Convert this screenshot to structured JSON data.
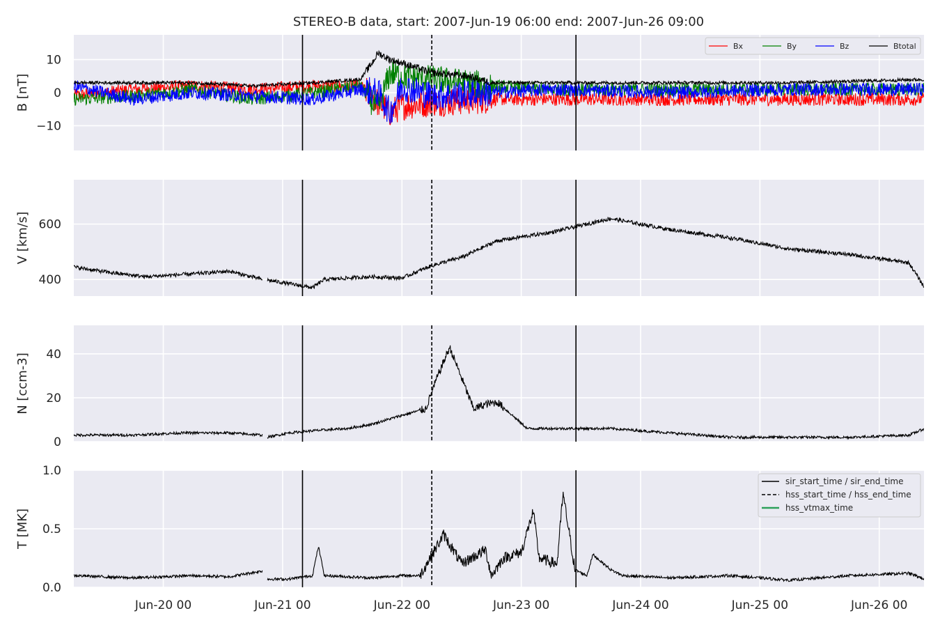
{
  "chart_data": {
    "type": "line",
    "title": "STEREO-B data, start: 2007-Jun-19 06:00  end: 2007-Jun-26 09:00",
    "x_range": [
      "2007-06-19 06:00",
      "2007-06-26 09:00"
    ],
    "x_ticks": [
      "Jun-20 00",
      "Jun-21 00",
      "Jun-22 00",
      "Jun-23 00",
      "Jun-24 00",
      "Jun-25 00",
      "Jun-26 00"
    ],
    "grid": true,
    "event_lines": [
      {
        "name": "sir_start_time / sir_end_time",
        "style": "solid",
        "times": [
          "2007-06-21 04:00",
          "2007-06-23 11:00"
        ]
      },
      {
        "name": "hss_start_time / hss_end_time",
        "style": "dashed",
        "times": [
          "2007-06-22 06:00"
        ]
      },
      {
        "name": "hss_vtmax_time",
        "style": "solid",
        "color": "#2ca05a",
        "times": []
      }
    ],
    "panels": [
      {
        "ylabel": "B [nT]",
        "ylim": [
          -17.5,
          17.5
        ],
        "yticks": [
          -10,
          0,
          10
        ],
        "ytick_labels": [
          "−10",
          "0",
          "10"
        ],
        "legend": "top-right",
        "series": [
          {
            "name": "Bx",
            "color": "#ff0000",
            "x": [
              0,
              0.5,
              1,
              1.5,
              2,
              2.4,
              2.55,
              2.65,
              2.75,
              3,
              3.5,
              4,
              5,
              6,
              7.13
            ],
            "y": [
              -1,
              1,
              2,
              1,
              2,
              2,
              -3,
              -6,
              -4,
              -3,
              -2,
              -2,
              -2,
              -2,
              -2
            ]
          },
          {
            "name": "By",
            "color": "#008000",
            "x": [
              0,
              0.5,
              1,
              1.5,
              2,
              2.4,
              2.55,
              2.65,
              2.75,
              3,
              3.5,
              4,
              5,
              6,
              7.13
            ],
            "y": [
              -2,
              -1,
              1,
              -2,
              0,
              2,
              -5,
              6,
              5,
              4,
              2,
              1,
              1,
              1,
              1
            ]
          },
          {
            "name": "Bz",
            "color": "#0000ff",
            "x": [
              0,
              0.5,
              1,
              1.5,
              2,
              2.4,
              2.55,
              2.65,
              2.75,
              3,
              3.5,
              4,
              5,
              6,
              7.13
            ],
            "y": [
              2,
              -2,
              0,
              -1,
              -2,
              1,
              0,
              -6,
              2,
              -1,
              0,
              1,
              0,
              1,
              1
            ]
          },
          {
            "name": "Btotal",
            "color": "#000000",
            "x": [
              0,
              0.5,
              1,
              1.5,
              2,
              2.4,
              2.5,
              2.55,
              2.65,
              2.75,
              3,
              3.3,
              3.5,
              4,
              5,
              6,
              7.13
            ],
            "y": [
              3,
              3,
              3,
              2,
              3,
              4,
              9,
              12,
              10,
              9,
              6,
              5,
              3,
              3,
              3,
              3,
              4
            ]
          }
        ]
      },
      {
        "ylabel": "V [km/s]",
        "ylim": [
          340,
          760
        ],
        "yticks": [
          400,
          600
        ],
        "series": [
          {
            "name": "V",
            "color": "#000000",
            "x": [
              0,
              0.3,
              0.6,
              1,
              1.3,
              1.58,
              1.62,
              1.8,
              2,
              2.1,
              2.5,
              2.75,
              3,
              3.25,
              3.45,
              3.55,
              4,
              4.3,
              4.5,
              5,
              5.5,
              6,
              6.5,
              7,
              7.13
            ],
            "y": [
              445,
              425,
              410,
              420,
              430,
              400,
              398,
              385,
              370,
              400,
              410,
              405,
              450,
              480,
              520,
              540,
              570,
              600,
              620,
              580,
              550,
              510,
              490,
              460,
              370
            ],
            "gaps": [
              [
                1.58,
                1.62
              ]
            ]
          }
        ]
      },
      {
        "ylabel": "N [ccm-3]",
        "ylim": [
          0,
          53
        ],
        "yticks": [
          0,
          20,
          40
        ],
        "series": [
          {
            "name": "N",
            "color": "#000000",
            "x": [
              0,
              0.5,
              0.9,
              1.3,
              1.58,
              1.62,
              1.8,
              2,
              2.3,
              2.5,
              2.75,
              2.95,
              3.05,
              3.15,
              3.35,
              3.45,
              3.55,
              3.8,
              4,
              4.5,
              5,
              5.5,
              6,
              6.5,
              7,
              7.13
            ],
            "y": [
              3,
              3,
              4,
              4,
              3,
              2,
              4,
              5,
              6,
              8,
              12,
              15,
              30,
              43,
              15,
              17,
              18,
              6,
              6,
              6,
              4,
              2,
              2,
              2,
              3,
              6
            ],
            "gaps": [
              [
                1.58,
                1.62
              ]
            ]
          }
        ]
      },
      {
        "ylabel": "T [MK]",
        "ylim": [
          0,
          1.0
        ],
        "yticks": [
          0.0,
          0.5,
          1.0
        ],
        "ytick_labels": [
          "0.0",
          "0.5",
          "1.0"
        ],
        "legend": "top-right",
        "series": [
          {
            "name": "T",
            "color": "#000000",
            "x": [
              0,
              0.5,
              1,
              1.3,
              1.58,
              1.62,
              1.8,
              2,
              2.05,
              2.1,
              2.5,
              2.75,
              2.9,
              3.1,
              3.25,
              3.45,
              3.5,
              3.6,
              3.75,
              3.85,
              3.9,
              4.05,
              4.1,
              4.2,
              4.3,
              4.35,
              4.5,
              4.6,
              5,
              5.5,
              6,
              6.5,
              7,
              7.13
            ],
            "y": [
              0.1,
              0.08,
              0.1,
              0.09,
              0.14,
              0.07,
              0.07,
              0.1,
              0.35,
              0.1,
              0.08,
              0.1,
              0.1,
              0.45,
              0.2,
              0.32,
              0.1,
              0.25,
              0.3,
              0.65,
              0.25,
              0.2,
              0.8,
              0.15,
              0.1,
              0.28,
              0.15,
              0.1,
              0.08,
              0.1,
              0.06,
              0.1,
              0.12,
              0.07
            ],
            "gaps": [
              [
                1.58,
                1.62
              ]
            ]
          }
        ]
      }
    ]
  }
}
